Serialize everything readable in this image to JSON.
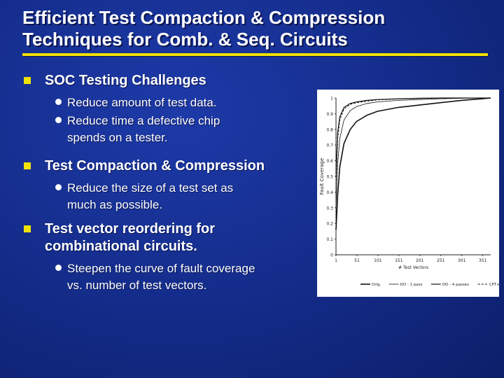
{
  "slide": {
    "title_line1": "Efficient Test Compaction & Compression",
    "title_line2": "Techniques for Comb. & Seq. Circuits",
    "accent_color": "#f2e200",
    "background_color": "#152e8e",
    "bullets": [
      {
        "heading": "SOC Testing Challenges",
        "subs": [
          "Reduce amount of test data.",
          "Reduce time a defective chip",
          "spends on a tester."
        ]
      },
      {
        "heading": "Test Compaction & Compression",
        "subs": [
          "Reduce the size of a test set as",
          "much as possible."
        ]
      },
      {
        "heading_line1": "Test vector reordering for",
        "heading_line2": "combinational circuits.",
        "subs": [
          "Steepen the curve of fault coverage",
          "vs. number of test vectors."
        ]
      }
    ]
  },
  "chart_data": {
    "type": "line",
    "xlabel": "# Test Vectors",
    "ylabel": "Fault Coverage",
    "x_ticks": [
      "1",
      "51",
      "101",
      "151",
      "201",
      "251",
      "301",
      "351"
    ],
    "y_ticks": [
      "0",
      "0.1",
      "0.2",
      "0.3",
      "0.4",
      "0.5",
      "0.6",
      "0.7",
      "0.8",
      "0.9",
      "1"
    ],
    "xlim": [
      1,
      370
    ],
    "ylim": [
      0,
      1
    ],
    "legend_position": "bottom",
    "x": [
      1,
      5,
      10,
      20,
      35,
      50,
      75,
      100,
      150,
      200,
      250,
      300,
      350,
      370
    ],
    "series": [
      {
        "name": "Orig.",
        "values": [
          0.16,
          0.38,
          0.56,
          0.71,
          0.8,
          0.85,
          0.89,
          0.915,
          0.94,
          0.955,
          0.97,
          0.985,
          0.995,
          1.0
        ],
        "dash": "solid",
        "width": 1.6
      },
      {
        "name": "DO - 1 pass",
        "values": [
          0.3,
          0.58,
          0.74,
          0.86,
          0.92,
          0.945,
          0.965,
          0.975,
          0.985,
          0.99,
          0.995,
          0.998,
          1.0,
          1.0
        ],
        "dash": "solid",
        "width": 0.8
      },
      {
        "name": "DO - 4 passes",
        "values": [
          0.5,
          0.78,
          0.88,
          0.94,
          0.965,
          0.975,
          0.985,
          0.99,
          0.995,
          0.998,
          1.0,
          1.0,
          1.0,
          1.0
        ],
        "dash": "solid",
        "width": 1.2
      },
      {
        "name": "CPT+",
        "values": [
          0.45,
          0.74,
          0.86,
          0.93,
          0.96,
          0.97,
          0.98,
          0.988,
          0.994,
          0.997,
          0.999,
          1.0,
          1.0,
          1.0
        ],
        "dash": "3,2",
        "width": 1.0
      }
    ]
  }
}
